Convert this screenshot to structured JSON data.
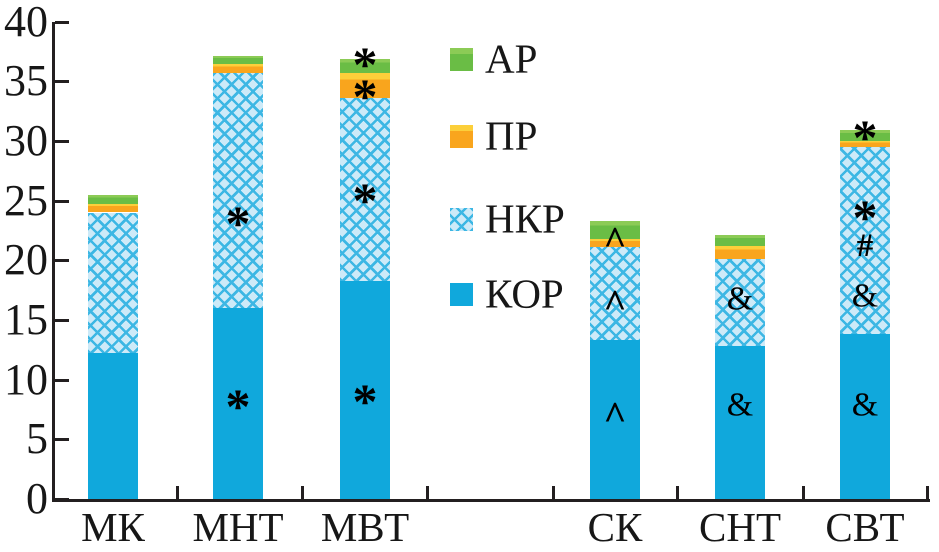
{
  "chart_data": {
    "type": "bar",
    "stacked": true,
    "title": "",
    "xlabel": "",
    "ylabel": "",
    "categories": [
      "МК",
      "МНТ",
      "МВТ",
      "СК",
      "СНТ",
      "СВТ"
    ],
    "series": [
      {
        "name": "КОР",
        "pattern": "solid",
        "color": "#10a8dc",
        "values": [
          12.2,
          16.0,
          18.3,
          13.3,
          12.8,
          13.8
        ]
      },
      {
        "name": "НКР",
        "pattern": "crosshatch",
        "color": "#cdeaf8",
        "hatch_line_color": "#3db7e4",
        "values": [
          11.8,
          19.7,
          15.3,
          7.8,
          7.3,
          15.7
        ]
      },
      {
        "name": "ПР",
        "pattern": "solid",
        "color": "#f9a51d",
        "top_highlight": "#fccf3a",
        "values": [
          0.7,
          0.7,
          2.1,
          0.7,
          1.1,
          0.5
        ]
      },
      {
        "name": "АР",
        "pattern": "solid",
        "color": "#6abd45",
        "top_highlight": "#8ccb56",
        "values": [
          0.8,
          0.7,
          1.2,
          1.5,
          0.9,
          0.9
        ]
      }
    ],
    "segment_tops": {
      "МК": [
        12.2,
        24.0,
        24.7,
        25.5
      ],
      "МНТ": [
        16.0,
        35.7,
        36.4,
        37.1
      ],
      "МВТ": [
        18.3,
        33.6,
        35.7,
        36.9
      ],
      "СК": [
        13.3,
        21.1,
        21.8,
        23.3
      ],
      "СНТ": [
        12.8,
        20.1,
        21.2,
        22.1
      ],
      "СВТ": [
        13.8,
        29.5,
        30.0,
        30.9
      ]
    },
    "markers": [
      {
        "category": "МНТ",
        "value": 9.0,
        "symbol": "*"
      },
      {
        "category": "МНТ",
        "value": 24.3,
        "symbol": "*"
      },
      {
        "category": "МВТ",
        "value": 9.4,
        "symbol": "*"
      },
      {
        "category": "МВТ",
        "value": 26.2,
        "symbol": "*"
      },
      {
        "category": "МВТ",
        "value": 34.9,
        "symbol": "*"
      },
      {
        "category": "МВТ",
        "value": 37.6,
        "symbol": "*"
      },
      {
        "category": "СК",
        "value": 8.0,
        "symbol": "^"
      },
      {
        "category": "СК",
        "value": 17.3,
        "symbol": "^"
      },
      {
        "category": "СК",
        "value": 22.6,
        "symbol": "^"
      },
      {
        "category": "СНТ",
        "value": 8.0,
        "symbol": "&"
      },
      {
        "category": "СНТ",
        "value": 16.8,
        "symbol": "&"
      },
      {
        "category": "СВТ",
        "value": 8.0,
        "symbol": "&"
      },
      {
        "category": "СВТ",
        "value": 17.1,
        "symbol": "&"
      },
      {
        "category": "СВТ",
        "value": 21.3,
        "symbol": "#"
      },
      {
        "category": "СВТ",
        "value": 24.8,
        "symbol": "*"
      },
      {
        "category": "СВТ",
        "value": 31.5,
        "symbol": "*"
      }
    ],
    "yticks": [
      0,
      5,
      10,
      15,
      20,
      25,
      30,
      35,
      40
    ],
    "ylim": [
      0,
      40
    ],
    "grid": false,
    "legend_position": "top-right-inside",
    "legend_order": [
      "АР",
      "ПР",
      "НКР",
      "КОР"
    ],
    "axis_color": "#231f20",
    "marker_color": "#000000"
  }
}
